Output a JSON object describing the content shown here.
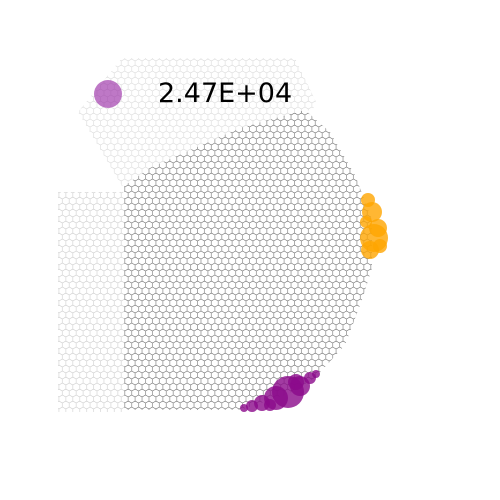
{
  "chart_data": {
    "type": "scatter",
    "title": "",
    "xlabel": "",
    "ylabel": "",
    "axes_visible": false,
    "legend": {
      "placement": "top-left",
      "entries": [
        {
          "label": "2.47E+04",
          "color": "#9b30a8"
        }
      ]
    },
    "background_grid": {
      "kind": "hexagonal",
      "fill": "none",
      "edge_color": "#444444"
    },
    "highlight_clusters": [
      {
        "color": "#ffa500",
        "location": "right"
      },
      {
        "color": "#8b0a8b",
        "location": "bottom"
      }
    ]
  }
}
